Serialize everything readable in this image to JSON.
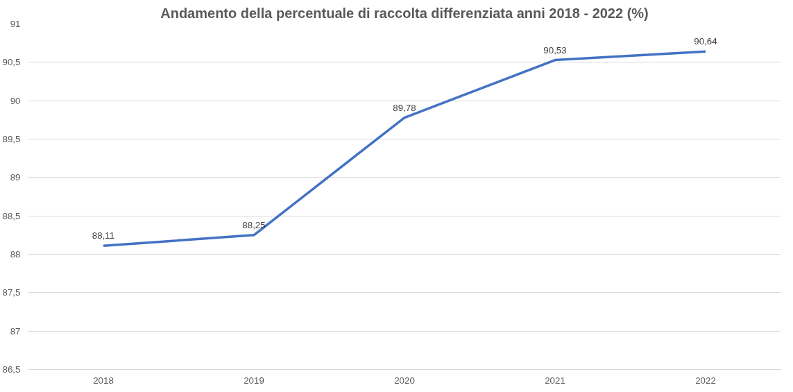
{
  "chart_data": {
    "type": "line",
    "title": "Andamento della percentuale di raccolta differenziata anni 2018 - 2022 (%)",
    "categories": [
      "2018",
      "2019",
      "2020",
      "2021",
      "2022"
    ],
    "series": [
      {
        "color": "#4472c4",
        "values": [
          88.11,
          88.25,
          89.78,
          90.53,
          90.64
        ],
        "value_labels": [
          "88,11",
          "88,25",
          "89,78",
          "90,53",
          "90,64"
        ]
      }
    ],
    "ylim": [
      86.5,
      91
    ],
    "yticks": [
      {
        "value": 86.5,
        "label": "86,5"
      },
      {
        "value": 87,
        "label": "87"
      },
      {
        "value": 87.5,
        "label": "87,5"
      },
      {
        "value": 88,
        "label": "88"
      },
      {
        "value": 88.5,
        "label": "88,5"
      },
      {
        "value": 89,
        "label": "89"
      },
      {
        "value": 89.5,
        "label": "89,5"
      },
      {
        "value": 90,
        "label": "90"
      },
      {
        "value": 90.5,
        "label": "90,5"
      },
      {
        "value": 91,
        "label": "91"
      }
    ],
    "grid": "y",
    "marker": "none",
    "line_style": "solid"
  }
}
